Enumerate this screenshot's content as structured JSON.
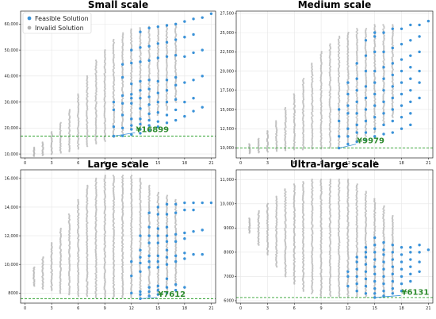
{
  "colors": {
    "feasible": "#3a92d8",
    "invalid": "#b3b3b3",
    "best_line": "#2ca02c",
    "annotation": "#2e8b2e",
    "grid": "#e6e6e6"
  },
  "legend": {
    "placement": "top-left",
    "feasible_label": "Feasible Solution",
    "invalid_label": "Invalid Solution"
  },
  "chart_data": [
    {
      "type": "scatter",
      "title": "Small scale",
      "xlim": [
        -0.5,
        21.5
      ],
      "ylim": [
        8500,
        65000
      ],
      "xticks": [
        0,
        3,
        6,
        9,
        12,
        15,
        18,
        21
      ],
      "yticks": [
        10000,
        20000,
        30000,
        40000,
        50000,
        60000
      ],
      "ytick_labels": [
        "10,000",
        "20,000",
        "30,000",
        "40,000",
        "50,000",
        "60,000"
      ],
      "grid": true,
      "best_value": 16899,
      "annotation": "¥16899",
      "best_x": 10,
      "annotation_xy": [
        12.5,
        18500
      ],
      "invalid_columns": [
        {
          "x": 1,
          "ymin": 9200,
          "ymax": 12500
        },
        {
          "x": 2,
          "ymin": 9500,
          "ymax": 14500
        },
        {
          "x": 3,
          "ymin": 10000,
          "ymax": 18500
        },
        {
          "x": 4,
          "ymin": 10500,
          "ymax": 22000
        },
        {
          "x": 5,
          "ymin": 11000,
          "ymax": 27000
        },
        {
          "x": 6,
          "ymin": 12000,
          "ymax": 33000
        },
        {
          "x": 7,
          "ymin": 13000,
          "ymax": 40000
        },
        {
          "x": 8,
          "ymin": 14000,
          "ymax": 46000
        },
        {
          "x": 9,
          "ymin": 15000,
          "ymax": 50000
        },
        {
          "x": 10,
          "ymin": 16500,
          "ymax": 54000
        },
        {
          "x": 11,
          "ymin": 18000,
          "ymax": 56500
        },
        {
          "x": 12,
          "ymin": 19500,
          "ymax": 58000
        },
        {
          "x": 13,
          "ymin": 21000,
          "ymax": 58500
        },
        {
          "x": 14,
          "ymin": 23000,
          "ymax": 59000
        },
        {
          "x": 15,
          "ymin": 25000,
          "ymax": 59000
        },
        {
          "x": 16,
          "ymin": 27000,
          "ymax": 59500
        },
        {
          "x": 17,
          "ymin": 30000,
          "ymax": 60000
        }
      ],
      "feasible_columns": [
        {
          "x": 10,
          "values": [
            16899,
            20500,
            27000,
            30000
          ]
        },
        {
          "x": 11,
          "values": [
            17000,
            20000,
            25000,
            29500,
            32500,
            39500,
            44500
          ]
        },
        {
          "x": 12,
          "values": [
            17500,
            19500,
            21000,
            23500,
            29500,
            31500,
            33000,
            37000,
            45000,
            50000
          ]
        },
        {
          "x": 13,
          "values": [
            18000,
            19500,
            21500,
            23500,
            27500,
            31500,
            34500,
            38000,
            45500,
            51000,
            57000
          ]
        },
        {
          "x": 14,
          "values": [
            19000,
            21000,
            23000,
            25500,
            29000,
            32000,
            35000,
            38500,
            46000,
            51500,
            58500
          ]
        },
        {
          "x": 15,
          "values": [
            20500,
            22500,
            26000,
            30000,
            33500,
            38000,
            47000,
            52500,
            59000
          ]
        },
        {
          "x": 16,
          "values": [
            22000,
            25000,
            30000,
            34500,
            38500,
            47500,
            53000,
            59500
          ]
        },
        {
          "x": 17,
          "values": [
            23000,
            27000,
            31000,
            36500,
            39500,
            48000,
            54000,
            60000
          ]
        },
        {
          "x": 18,
          "values": [
            24500,
            30000,
            37500,
            47500,
            55000,
            61000
          ]
        },
        {
          "x": 19,
          "values": [
            26500,
            31500,
            38500,
            49000,
            56000,
            62000
          ]
        },
        {
          "x": 20,
          "values": [
            28000,
            40000,
            50000,
            62500
          ]
        },
        {
          "x": 21,
          "values": [
            64000
          ]
        }
      ]
    },
    {
      "type": "scatter",
      "title": "Medium scale",
      "xlim": [
        -0.5,
        21.5
      ],
      "ylim": [
        8700,
        27800
      ],
      "xticks": [
        0,
        3,
        6,
        9,
        12,
        15,
        18,
        21
      ],
      "yticks": [
        10000,
        12500,
        15000,
        17500,
        20000,
        22500,
        25000,
        27500
      ],
      "ytick_labels": [
        "10,000",
        "12,500",
        "15,000",
        "17,500",
        "20,000",
        "22,500",
        "25,000",
        "27,500"
      ],
      "grid": true,
      "best_value": 9979,
      "annotation": "¥9979",
      "best_x": 11,
      "annotation_xy": [
        13,
        10600
      ],
      "invalid_columns": [
        {
          "x": 1,
          "ymin": 9300,
          "ymax": 10500
        },
        {
          "x": 2,
          "ymin": 9400,
          "ymax": 11200
        },
        {
          "x": 3,
          "ymin": 9500,
          "ymax": 12200
        },
        {
          "x": 4,
          "ymin": 9600,
          "ymax": 13500
        },
        {
          "x": 5,
          "ymin": 9700,
          "ymax": 15200
        },
        {
          "x": 6,
          "ymin": 9800,
          "ymax": 17000
        },
        {
          "x": 7,
          "ymin": 9800,
          "ymax": 19000
        },
        {
          "x": 8,
          "ymin": 9900,
          "ymax": 21000
        },
        {
          "x": 9,
          "ymin": 9900,
          "ymax": 22500
        },
        {
          "x": 10,
          "ymin": 10000,
          "ymax": 23500
        },
        {
          "x": 11,
          "ymin": 10200,
          "ymax": 24500
        },
        {
          "x": 12,
          "ymin": 10500,
          "ymax": 25000
        },
        {
          "x": 13,
          "ymin": 11000,
          "ymax": 25500
        },
        {
          "x": 14,
          "ymin": 11500,
          "ymax": 25500
        },
        {
          "x": 15,
          "ymin": 12000,
          "ymax": 26000
        },
        {
          "x": 16,
          "ymin": 13000,
          "ymax": 26000
        },
        {
          "x": 17,
          "ymin": 14000,
          "ymax": 26000
        }
      ],
      "feasible_columns": [
        {
          "x": 11,
          "values": [
            9979,
            11500,
            13500,
            15000
          ]
        },
        {
          "x": 12,
          "values": [
            10500,
            11500,
            12500,
            14500,
            15500,
            17000,
            18500
          ]
        },
        {
          "x": 13,
          "values": [
            10800,
            12000,
            13000,
            14500,
            16000,
            17500,
            19000,
            21000
          ]
        },
        {
          "x": 14,
          "values": [
            11000,
            12000,
            13500,
            15000,
            16500,
            18000,
            20000,
            22000,
            24000
          ]
        },
        {
          "x": 15,
          "values": [
            11500,
            12500,
            14000,
            15500,
            17000,
            18500,
            20000,
            22500,
            24500,
            25000
          ]
        },
        {
          "x": 16,
          "values": [
            11800,
            13000,
            14500,
            16000,
            17500,
            19000,
            20500,
            22500,
            25000
          ]
        },
        {
          "x": 17,
          "values": [
            12000,
            13500,
            15000,
            16500,
            18000,
            19500,
            21000,
            23000,
            25500
          ]
        },
        {
          "x": 18,
          "values": [
            12500,
            14000,
            15500,
            17000,
            18500,
            20000,
            21500,
            23500,
            25500
          ]
        },
        {
          "x": 19,
          "values": [
            13000,
            14500,
            16000,
            17500,
            19000,
            20500,
            22000,
            24000,
            26000
          ]
        },
        {
          "x": 20,
          "values": [
            16500,
            18500,
            20000,
            22500,
            24500,
            26000
          ]
        },
        {
          "x": 21,
          "values": [
            26500
          ]
        }
      ]
    },
    {
      "type": "scatter",
      "title": "Large scale",
      "xlim": [
        -0.5,
        21.5
      ],
      "ylim": [
        7300,
        16600
      ],
      "xticks": [
        0,
        3,
        6,
        9,
        12,
        15,
        18,
        21
      ],
      "yticks": [
        8000,
        10000,
        12000,
        14000,
        16000
      ],
      "ytick_labels": [
        "8000",
        "10,000",
        "12,000",
        "14,000",
        "16,000"
      ],
      "grid": true,
      "best_value": 7612,
      "annotation": "¥7612",
      "best_x": 13,
      "annotation_xy": [
        15,
        7750
      ],
      "invalid_columns": [
        {
          "x": 1,
          "ymin": 8500,
          "ymax": 9800
        },
        {
          "x": 2,
          "ymin": 8300,
          "ymax": 10500
        },
        {
          "x": 3,
          "ymin": 8200,
          "ymax": 11500
        },
        {
          "x": 4,
          "ymin": 8000,
          "ymax": 12500
        },
        {
          "x": 5,
          "ymin": 7900,
          "ymax": 13500
        },
        {
          "x": 6,
          "ymin": 7800,
          "ymax": 14500
        },
        {
          "x": 7,
          "ymin": 7800,
          "ymax": 15500
        },
        {
          "x": 8,
          "ymin": 7700,
          "ymax": 16000
        },
        {
          "x": 9,
          "ymin": 7700,
          "ymax": 16200
        },
        {
          "x": 10,
          "ymin": 7700,
          "ymax": 16200
        },
        {
          "x": 11,
          "ymin": 7700,
          "ymax": 16200
        },
        {
          "x": 12,
          "ymin": 7700,
          "ymax": 16200
        },
        {
          "x": 13,
          "ymin": 7700,
          "ymax": 16000
        },
        {
          "x": 14,
          "ymin": 7800,
          "ymax": 15500
        },
        {
          "x": 15,
          "ymin": 8000,
          "ymax": 15000
        },
        {
          "x": 16,
          "ymin": 8200,
          "ymax": 14800
        },
        {
          "x": 17,
          "ymin": 8500,
          "ymax": 14500
        }
      ],
      "feasible_columns": [
        {
          "x": 12,
          "values": [
            8000,
            9200,
            10200
          ]
        },
        {
          "x": 13,
          "values": [
            7612,
            7900,
            8100,
            9500,
            10100,
            10500,
            11000,
            12000
          ]
        },
        {
          "x": 14,
          "values": [
            7800,
            8100,
            8400,
            9800,
            10200,
            10600,
            11500,
            12000,
            12600,
            13600
          ]
        },
        {
          "x": 15,
          "values": [
            7900,
            8200,
            8500,
            9800,
            10200,
            10600,
            11500,
            12000,
            12500,
            13500,
            14000
          ]
        },
        {
          "x": 16,
          "values": [
            8000,
            8400,
            9000,
            10000,
            10500,
            11000,
            11600,
            12000,
            12600,
            13500,
            14200
          ]
        },
        {
          "x": 17,
          "values": [
            8200,
            8600,
            10200,
            10600,
            11600,
            12100,
            13600,
            14200
          ]
        },
        {
          "x": 18,
          "values": [
            8400,
            10400,
            10800,
            11800,
            12200,
            13800,
            14300
          ]
        },
        {
          "x": 19,
          "values": [
            10700,
            12300,
            13800,
            14300
          ]
        },
        {
          "x": 20,
          "values": [
            10700,
            12400,
            14300
          ]
        },
        {
          "x": 21,
          "values": [
            14300
          ]
        }
      ]
    },
    {
      "type": "scatter",
      "title": "Ultra-large scale",
      "xlim": [
        -0.5,
        21.5
      ],
      "ylim": [
        5900,
        11400
      ],
      "xticks": [
        0,
        3,
        6,
        9,
        12,
        15,
        18,
        21
      ],
      "yticks": [
        6000,
        7000,
        8000,
        9000,
        10000,
        11000
      ],
      "ytick_labels": [
        "6000",
        "7000",
        "8000",
        "9000",
        "10,000",
        "11,000"
      ],
      "grid": true,
      "best_value": 6131,
      "annotation": "¥6131",
      "best_x": 15,
      "annotation_xy": [
        18,
        6250
      ],
      "invalid_columns": [
        {
          "x": 1,
          "ymin": 8800,
          "ymax": 9400
        },
        {
          "x": 2,
          "ymin": 8300,
          "ymax": 9700
        },
        {
          "x": 3,
          "ymin": 7900,
          "ymax": 10000
        },
        {
          "x": 4,
          "ymin": 7400,
          "ymax": 10300
        },
        {
          "x": 5,
          "ymin": 7000,
          "ymax": 10600
        },
        {
          "x": 6,
          "ymin": 6700,
          "ymax": 10800
        },
        {
          "x": 7,
          "ymin": 6400,
          "ymax": 10900
        },
        {
          "x": 8,
          "ymin": 6300,
          "ymax": 11000
        },
        {
          "x": 9,
          "ymin": 6200,
          "ymax": 11000
        },
        {
          "x": 10,
          "ymin": 6200,
          "ymax": 11000
        },
        {
          "x": 11,
          "ymin": 6150,
          "ymax": 11000
        },
        {
          "x": 12,
          "ymin": 6150,
          "ymax": 11000
        },
        {
          "x": 13,
          "ymin": 6150,
          "ymax": 10800
        },
        {
          "x": 14,
          "ymin": 6150,
          "ymax": 10500
        },
        {
          "x": 15,
          "ymin": 6150,
          "ymax": 10200
        },
        {
          "x": 16,
          "ymin": 6200,
          "ymax": 9900
        },
        {
          "x": 17,
          "ymin": 6300,
          "ymax": 9500
        }
      ],
      "feasible_columns": [
        {
          "x": 12,
          "values": [
            6600,
            7000,
            7200
          ]
        },
        {
          "x": 13,
          "values": [
            6400,
            6700,
            7000,
            7300,
            7600,
            7800
          ]
        },
        {
          "x": 14,
          "values": [
            6300,
            6600,
            6900,
            7200,
            7500,
            7800,
            8000,
            8200
          ]
        },
        {
          "x": 15,
          "values": [
            6131,
            6300,
            6500,
            6800,
            7100,
            7400,
            7700,
            8000,
            8300,
            8600
          ]
        },
        {
          "x": 16,
          "values": [
            6200,
            6400,
            6700,
            7000,
            7300,
            7600,
            7900,
            8100,
            8400
          ]
        },
        {
          "x": 17,
          "values": [
            6300,
            6500,
            6800,
            7100,
            7400,
            7700,
            8000,
            8300
          ]
        },
        {
          "x": 18,
          "values": [
            6400,
            6700,
            7000,
            7300,
            7600,
            7900,
            8200
          ]
        },
        {
          "x": 19,
          "values": [
            6800,
            7100,
            7400,
            7700,
            8000,
            8200
          ]
        },
        {
          "x": 20,
          "values": [
            7200,
            7600,
            8000,
            8300
          ]
        },
        {
          "x": 21,
          "values": [
            8100
          ]
        }
      ]
    }
  ]
}
